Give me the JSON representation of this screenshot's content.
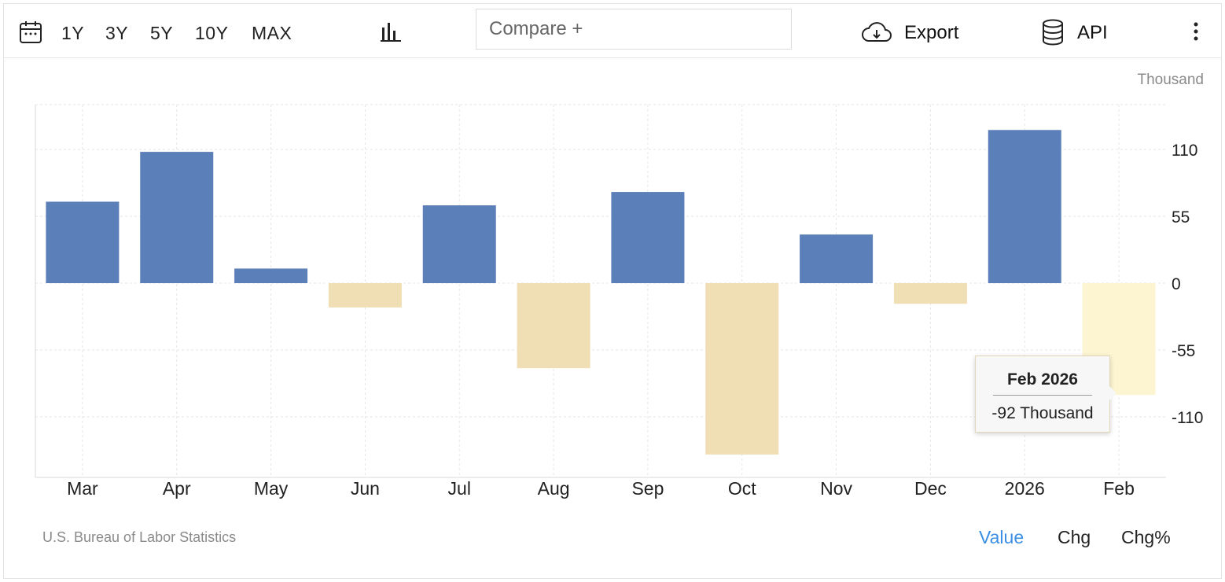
{
  "toolbar": {
    "ranges": [
      "1Y",
      "3Y",
      "5Y",
      "10Y",
      "MAX"
    ],
    "compare_placeholder": "Compare +",
    "export_label": "Export",
    "api_label": "API"
  },
  "unit_label": "Thousand",
  "source": "U.S. Bureau of Labor Statistics",
  "modes": [
    "Value",
    "Chg",
    "Chg%"
  ],
  "active_mode": "Value",
  "tooltip": {
    "title": "Feb 2026",
    "value": "-92 Thousand"
  },
  "colors": {
    "positive": "#5b7fb8",
    "negative": "#f0deb4",
    "highlight": "#fdf5d2",
    "active_mode": "#3a8ee6"
  },
  "chart_data": {
    "type": "bar",
    "categories": [
      "Mar",
      "Apr",
      "May",
      "Jun",
      "Jul",
      "Aug",
      "Sep",
      "Oct",
      "Nov",
      "Dec",
      "2026",
      "Feb"
    ],
    "values": [
      67,
      108,
      12,
      -20,
      64,
      -70,
      75,
      -141,
      40,
      -17,
      126,
      -92
    ],
    "yticks": [
      110,
      55,
      0,
      -55,
      -110
    ],
    "ylim": [
      -160,
      147
    ],
    "highlighted_category": "Feb",
    "grid": true
  }
}
